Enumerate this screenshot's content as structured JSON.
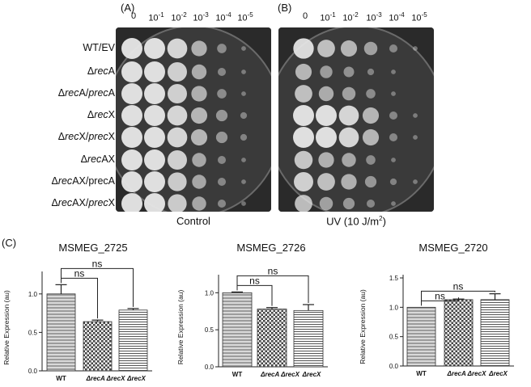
{
  "panels": {
    "a_label": "(A)",
    "b_label": "(B)",
    "c_label": "(C)"
  },
  "dilutions": [
    "0",
    "10-1",
    "10-2",
    "10-3",
    "10-4",
    "10-5"
  ],
  "dilution_parts": [
    {
      "base": "0",
      "exp": ""
    },
    {
      "base": "10",
      "exp": "-1"
    },
    {
      "base": "10",
      "exp": "-2"
    },
    {
      "base": "10",
      "exp": "-3"
    },
    {
      "base": "10",
      "exp": "-4"
    },
    {
      "base": "10",
      "exp": "-5"
    }
  ],
  "strains": [
    {
      "pre": "WT/EV",
      "it": "",
      "post": ""
    },
    {
      "pre": "Δ",
      "it": "rec",
      "post": "A"
    },
    {
      "pre": "Δ",
      "it": "rec",
      "post": "A/",
      "it2": "prec",
      "post2": "A"
    },
    {
      "pre": "Δ",
      "it": "rec",
      "post": "X"
    },
    {
      "pre": "Δ",
      "it": "rec",
      "post": "X/",
      "it2": "prec",
      "post2": "X"
    },
    {
      "pre": "Δ",
      "it": "rec",
      "post": "AX"
    },
    {
      "pre": "Δ",
      "it": "rec",
      "post": "AX/precA"
    },
    {
      "pre": "Δ",
      "it": "rec",
      "post": "AX/",
      "it2": "prec",
      "post2": "X"
    }
  ],
  "plate_captions": {
    "control": "Control",
    "uv": "UV (10 J/m",
    "uv_sup": "2",
    "uv_close": ")"
  },
  "growth": {
    "control": [
      [
        1,
        1,
        0.9,
        0.55,
        0.2,
        0.05
      ],
      [
        1,
        1,
        0.85,
        0.5,
        0.15,
        0.05
      ],
      [
        1,
        1,
        0.85,
        0.55,
        0.2,
        0.05
      ],
      [
        1,
        1,
        0.9,
        0.6,
        0.3,
        0.1
      ],
      [
        1,
        1,
        0.9,
        0.6,
        0.3,
        0.1
      ],
      [
        1,
        1,
        0.85,
        0.45,
        0.15,
        0.05
      ],
      [
        1,
        1,
        0.8,
        0.45,
        0.15,
        0.05
      ],
      [
        1,
        1,
        0.8,
        0.45,
        0.15,
        0.05
      ]
    ],
    "uv": [
      [
        0.95,
        0.7,
        0.6,
        0.4,
        0.15,
        0.05
      ],
      [
        0.6,
        0.35,
        0.25,
        0.1,
        0.05,
        0.0
      ],
      [
        0.7,
        0.5,
        0.4,
        0.2,
        0.05,
        0.0
      ],
      [
        1,
        1,
        0.9,
        0.6,
        0.15,
        0.05
      ],
      [
        1,
        1,
        0.9,
        0.6,
        0.15,
        0.05
      ],
      [
        0.75,
        0.55,
        0.45,
        0.2,
        0.05,
        0.0
      ],
      [
        0.85,
        0.7,
        0.55,
        0.3,
        0.1,
        0.05
      ],
      [
        0.7,
        0.4,
        0.3,
        0.15,
        0.05,
        0.0
      ]
    ]
  },
  "colors": {
    "plate_bg": "#2a2a2a",
    "colony": "#e8e8e8",
    "bar_stroke": "#333333"
  },
  "chart_data": [
    {
      "type": "bar",
      "title": "MSMEG_2725",
      "ylabel": "Relative Expression (au)",
      "categories": [
        "WT",
        "ΔrecA ΔrecX",
        "ΔrecX"
      ],
      "values": [
        1.0,
        0.64,
        0.79
      ],
      "errors": [
        0.12,
        0.02,
        0.02
      ],
      "ylim": [
        0,
        1.25
      ],
      "yticks": [
        "0.0",
        "0.5",
        "1.0"
      ],
      "yticks_values": [
        0,
        0.5,
        1.0
      ],
      "annotations": [
        "ns",
        "ns"
      ]
    },
    {
      "type": "bar",
      "title": "MSMEG_2726",
      "ylabel": "Relative Expression (au)",
      "categories": [
        "WT",
        "ΔrecA ΔrecX",
        "ΔrecX"
      ],
      "values": [
        1.0,
        0.78,
        0.76
      ],
      "errors": [
        0.01,
        0.02,
        0.08
      ],
      "ylim": [
        0,
        1.2
      ],
      "yticks": [
        "0.0",
        "0.5",
        "1.0"
      ],
      "yticks_values": [
        0,
        0.5,
        1.0
      ],
      "annotations": [
        "ns",
        "ns"
      ]
    },
    {
      "type": "bar",
      "title": "MSMEG_2720",
      "ylabel": "Relative Expression (au)",
      "categories": [
        "WT",
        "ΔrecA ΔrecX",
        "ΔrecX"
      ],
      "values": [
        1.0,
        1.13,
        1.13
      ],
      "errors": [
        0.0,
        0.01,
        0.1
      ],
      "ylim": [
        0,
        1.5
      ],
      "yticks": [
        "0.0",
        "0.5",
        "1.0",
        "1.5"
      ],
      "yticks_values": [
        0,
        0.5,
        1.0,
        1.5
      ],
      "annotations": [
        "ns",
        "ns"
      ]
    }
  ]
}
